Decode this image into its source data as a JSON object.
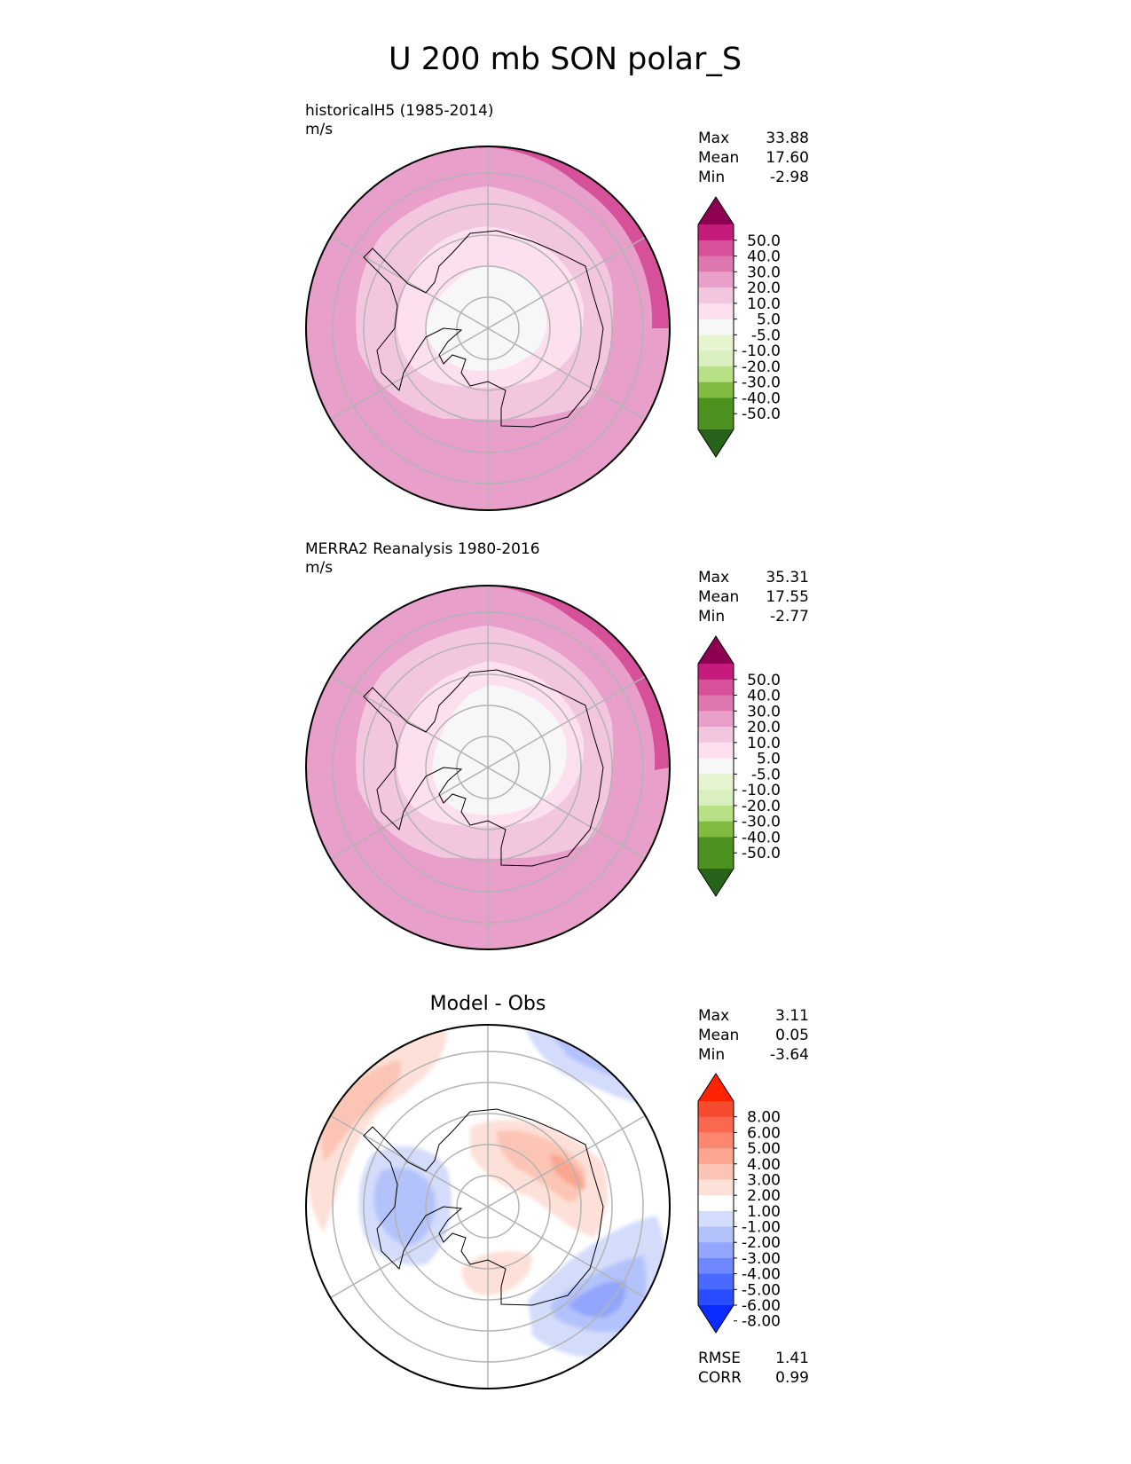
{
  "title": "U 200 mb SON polar_S",
  "stat_labels": {
    "max": "Max",
    "mean": "Mean",
    "min": "Min",
    "rmse": "RMSE",
    "corr": "CORR"
  },
  "colors": {
    "field_scale": [
      "#276419",
      "#4d9221",
      "#7fbc41",
      "#b8e186",
      "#e6f5d0",
      "#f7f7f7",
      "#fde0ef",
      "#f1b6da",
      "#de77ae",
      "#c51b7d",
      "#8e0152"
    ],
    "field_colors": [
      "#276419",
      "#4d9221",
      "#4d9221",
      "#7fbc41",
      "#b8e186",
      "#d9efc0",
      "#e6f5d0",
      "#f7f7f7",
      "#fde0ef",
      "#f3c6e0",
      "#e8a0ca",
      "#de77ae",
      "#d6509a",
      "#c51b7d",
      "#8e0152"
    ],
    "diff_colors": [
      "#0b2cff",
      "#2a4dff",
      "#4a6aff",
      "#6f88ff",
      "#93a6ff",
      "#b4c2fc",
      "#d4dcfb",
      "#ffffff",
      "#fde0d8",
      "#fcc4b4",
      "#fca58f",
      "#fb876f",
      "#f9684f",
      "#f44a2e",
      "#ff2200"
    ]
  },
  "chart_data": [
    {
      "type": "heatmap",
      "projection": "south_polar_stereographic",
      "title_left": "historicalH5 (1985-2014)",
      "units": "m/s",
      "stats": {
        "max": "33.88",
        "mean": "17.60",
        "min": "-2.98"
      },
      "colorbar_ticks": [
        "50.0",
        "40.0",
        "30.0",
        "20.0",
        "10.0",
        "5.0",
        "-5.0",
        "-10.0",
        "-20.0",
        "-30.0",
        "-40.0",
        "-50.0"
      ],
      "field_ring_values_ms": [
        4,
        9,
        14,
        19,
        22,
        24,
        27,
        29
      ]
    },
    {
      "type": "heatmap",
      "projection": "south_polar_stereographic",
      "title_left": "MERRA2 Reanalysis 1980-2016",
      "units": "m/s",
      "stats": {
        "max": "35.31",
        "mean": "17.55",
        "min": "-2.77"
      },
      "colorbar_ticks": [
        "50.0",
        "40.0",
        "30.0",
        "20.0",
        "10.0",
        "5.0",
        "-5.0",
        "-10.0",
        "-20.0",
        "-30.0",
        "-40.0",
        "-50.0"
      ],
      "field_ring_values_ms": [
        3,
        8,
        13,
        18,
        21,
        24,
        27,
        30
      ]
    },
    {
      "type": "heatmap",
      "projection": "south_polar_stereographic",
      "title_center": "Model - Obs",
      "stats": {
        "max": "3.11",
        "mean": "0.05",
        "min": "-3.64",
        "rmse": "1.41",
        "corr": "0.99"
      },
      "colorbar_ticks": [
        "8.00",
        "6.00",
        "5.00",
        "4.00",
        "3.00",
        "2.00",
        "1.00",
        "-1.00",
        "-2.00",
        "-3.00",
        "-4.00",
        "-5.00",
        "-6.00",
        "-8.00"
      ]
    }
  ]
}
